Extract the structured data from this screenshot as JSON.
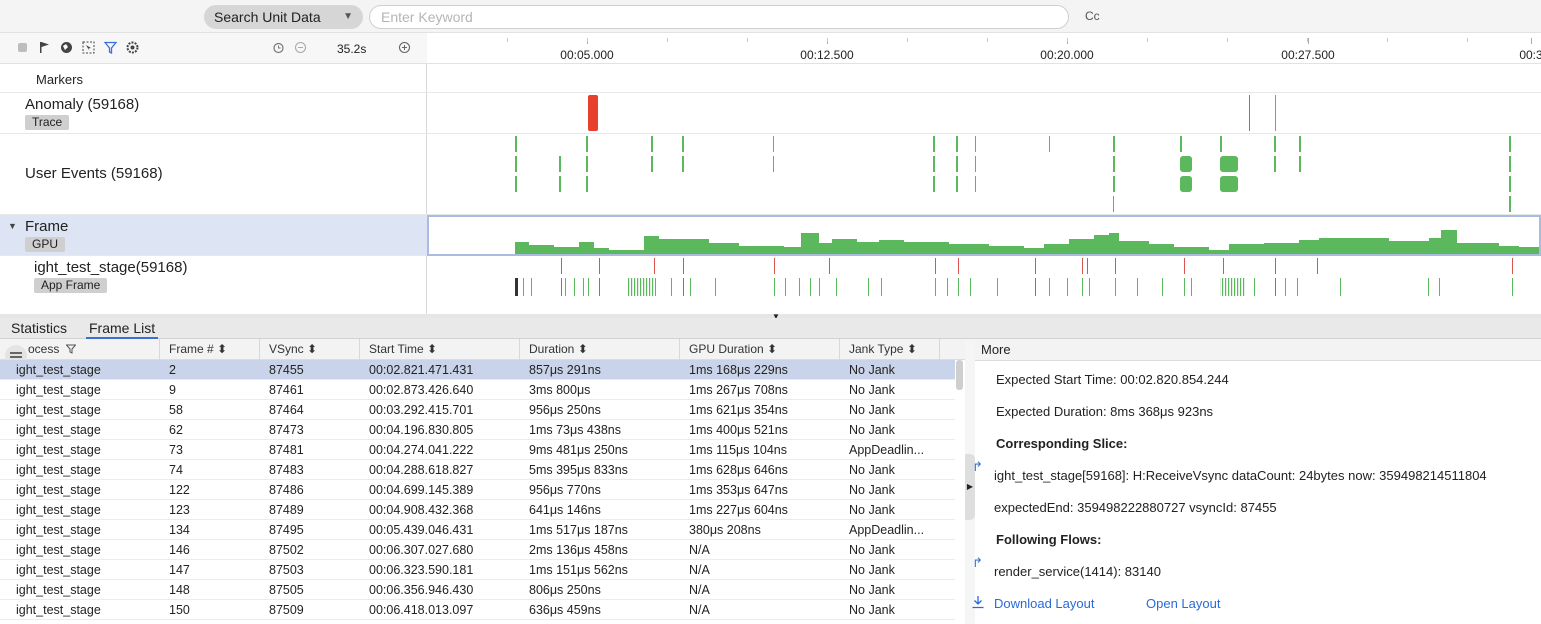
{
  "search": {
    "scope_label": "Search Unit Data",
    "placeholder": "Enter Keyword",
    "case_label": "Cc"
  },
  "toolbar": {
    "zoom_value": "35.2s",
    "icons": [
      "square-icon",
      "flag-icon",
      "globe-icon",
      "select-icon",
      "filter-icon",
      "settings-icon",
      "reset-icon",
      "zoom-out-icon",
      "zoom-in-icon"
    ]
  },
  "ruler": {
    "ticks": [
      "00:05.000",
      "00:12.500",
      "00:20.000",
      "00:27.500",
      "00:3"
    ]
  },
  "rows": {
    "markers": "Markers",
    "anomaly": {
      "label": "Anomaly (59168)",
      "badge": "Trace"
    },
    "user_events": {
      "label": "User Events (59168)"
    },
    "frame": {
      "label": "Frame",
      "badge": "GPU"
    },
    "app": {
      "label": "ight_test_stage(59168)",
      "badge": "App Frame"
    }
  },
  "colors": {
    "anomaly": "#e8402f",
    "event": "#5cb85c",
    "jank": "#d9534f",
    "accent": "#3b6fd6",
    "selected_row": "#c9d4ea"
  },
  "tabs": [
    "Statistics",
    "Frame List"
  ],
  "active_tab": "Frame List",
  "table": {
    "headers": [
      "Process",
      "Frame #",
      "VSync",
      "Start Time",
      "Duration",
      "GPU Duration",
      "Jank Type"
    ],
    "header_process_visible": "ocess",
    "rows": [
      [
        "ight_test_stage",
        "2",
        "87455",
        "00:02.821.471.431",
        "857μs 291ns",
        "1ms 168μs 229ns",
        "No Jank"
      ],
      [
        "ight_test_stage",
        "9",
        "87461",
        "00:02.873.426.640",
        "3ms 800μs",
        "1ms 267μs 708ns",
        "No Jank"
      ],
      [
        "ight_test_stage",
        "58",
        "87464",
        "00:03.292.415.701",
        "956μs 250ns",
        "1ms 621μs 354ns",
        "No Jank"
      ],
      [
        "ight_test_stage",
        "62",
        "87473",
        "00:04.196.830.805",
        "1ms 73μs 438ns",
        "1ms 400μs 521ns",
        "No Jank"
      ],
      [
        "ight_test_stage",
        "73",
        "87481",
        "00:04.274.041.222",
        "9ms 481μs 250ns",
        "1ms 115μs 104ns",
        "AppDeadlin..."
      ],
      [
        "ight_test_stage",
        "74",
        "87483",
        "00:04.288.618.827",
        "5ms 395μs 833ns",
        "1ms 628μs 646ns",
        "No Jank"
      ],
      [
        "ight_test_stage",
        "122",
        "87486",
        "00:04.699.145.389",
        "956μs 770ns",
        "1ms 353μs 647ns",
        "No Jank"
      ],
      [
        "ight_test_stage",
        "123",
        "87489",
        "00:04.908.432.368",
        "641μs 146ns",
        "1ms 227μs 604ns",
        "No Jank"
      ],
      [
        "ight_test_stage",
        "134",
        "87495",
        "00:05.439.046.431",
        "1ms 517μs 187ns",
        "380μs 208ns",
        "AppDeadlin..."
      ],
      [
        "ight_test_stage",
        "146",
        "87502",
        "00:06.307.027.680",
        "2ms 136μs 458ns",
        "N/A",
        "No Jank"
      ],
      [
        "ight_test_stage",
        "147",
        "87503",
        "00:06.323.590.181",
        "1ms 151μs 562ns",
        "N/A",
        "No Jank"
      ],
      [
        "ight_test_stage",
        "148",
        "87505",
        "00:06.356.946.430",
        "806μs 250ns",
        "N/A",
        "No Jank"
      ],
      [
        "ight_test_stage",
        "150",
        "87509",
        "00:06.418.013.097",
        "636μs 459ns",
        "N/A",
        "No Jank"
      ]
    ]
  },
  "more": {
    "title": "More",
    "expected_start": "Expected Start Time: 00:02.820.854.244",
    "expected_duration": "Expected Duration: 8ms 368μs 923ns",
    "corresponding_slice_title": "Corresponding Slice:",
    "slice_line1": "ight_test_stage[59168]: H:ReceiveVsync dataCount: 24bytes now: 359498214511804",
    "slice_line2": "expectedEnd: 359498222880727 vsyncId: 87455",
    "following_flows_title": "Following Flows:",
    "flow_line": "render_service(1414): 83140",
    "download_layout": "Download Layout",
    "open_layout": "Open Layout"
  }
}
